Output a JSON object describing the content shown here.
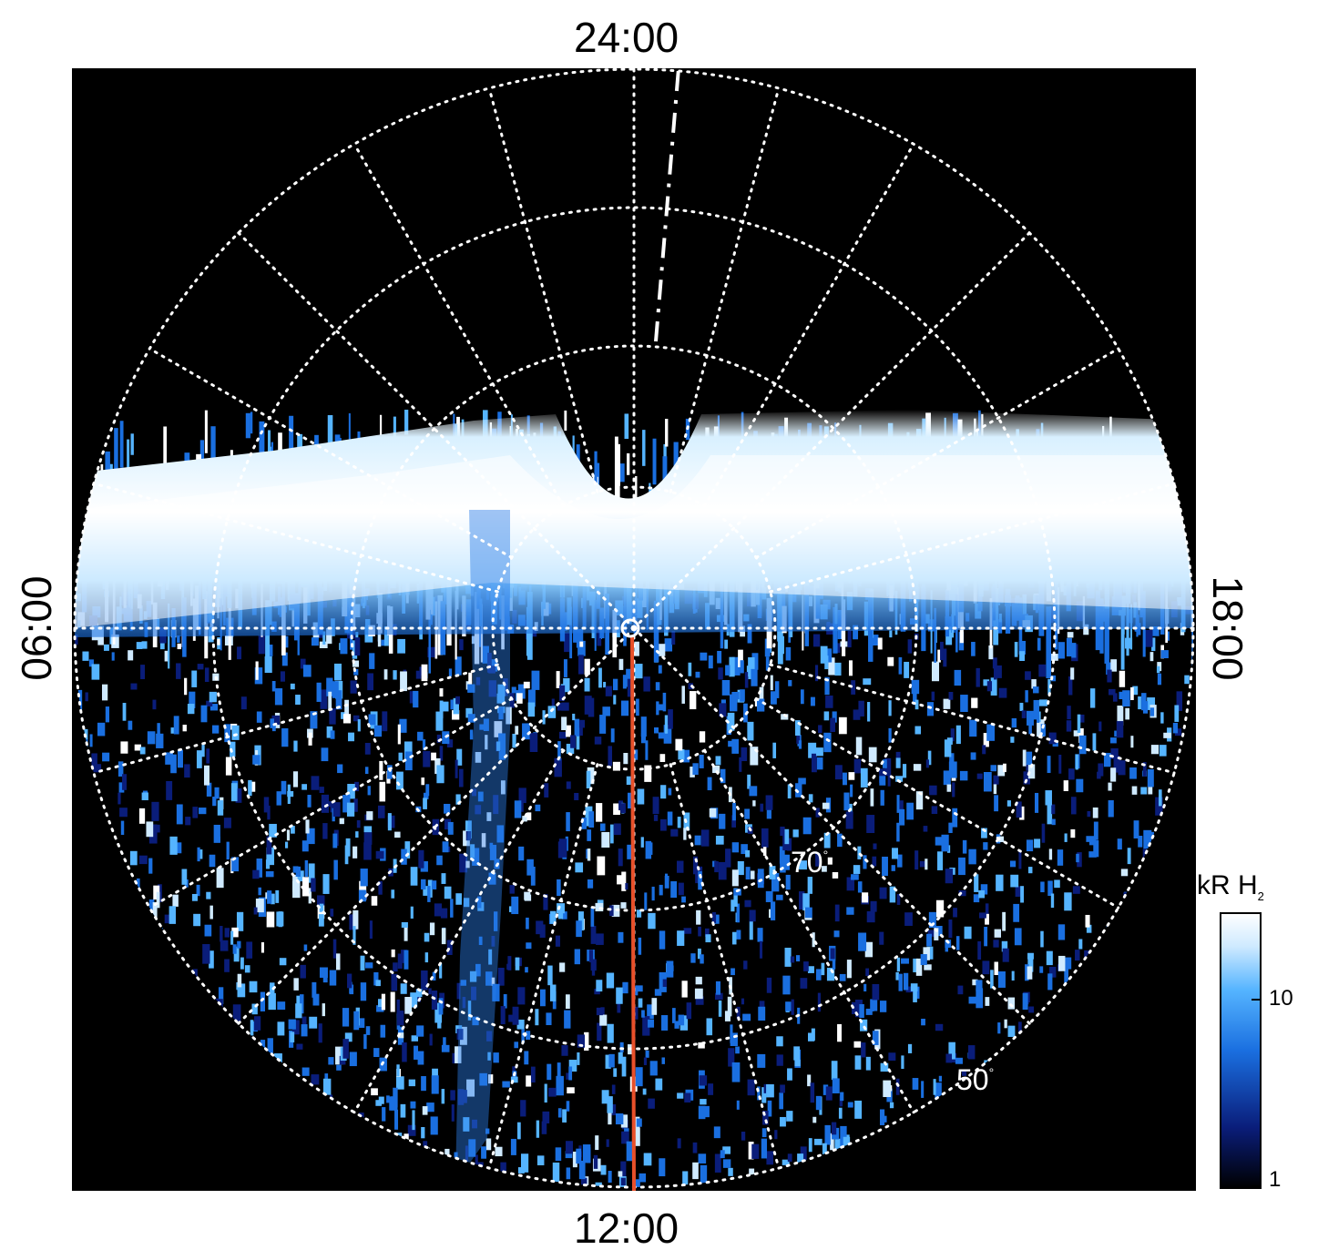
{
  "labels": {
    "top": "24:00",
    "bottom": "12:00",
    "left": "06:00",
    "right": "18:00",
    "lat_inner": "70",
    "lat_outer": "50",
    "degree": "°"
  },
  "colorbar": {
    "title": "kR H",
    "title_sub": "2",
    "ticks": [
      {
        "value": 10,
        "label": "10"
      },
      {
        "value": 1,
        "label": "1"
      }
    ],
    "scale": "log",
    "range": [
      1,
      30
    ]
  },
  "colors": {
    "background": "#000000",
    "grid": "#ffffff",
    "meridian_line": "#e8502a",
    "colormap": [
      "#000000",
      "#0a1d7a",
      "#1a6fe0",
      "#55b4ff",
      "#cfeaff",
      "#ffffff"
    ]
  },
  "chart_data": {
    "type": "heatmap",
    "projection": "polar",
    "title": "",
    "local_time_labels": [
      "24:00",
      "06:00",
      "12:00",
      "18:00"
    ],
    "latitude_labels": [
      70,
      50
    ],
    "value_unit": "kR H2",
    "value_range": [
      1,
      30
    ],
    "color_scale": "log",
    "grid": true,
    "legend": "colorbar right"
  }
}
